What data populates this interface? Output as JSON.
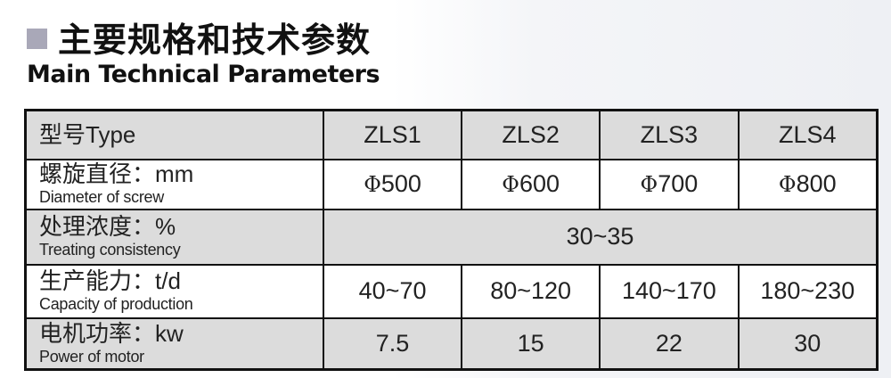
{
  "header": {
    "title_cn": "主要规格和技术参数",
    "title_en": "Main Technical Parameters"
  },
  "table": {
    "type_row": {
      "label_cn": "型号",
      "label_en": "Type",
      "values": [
        "ZLS1",
        "ZLS2",
        "ZLS3",
        "ZLS4"
      ]
    },
    "rows": [
      {
        "label_cn": "螺旋直径：",
        "unit": "mm",
        "label_en": "Diameter of screw",
        "prefix": "Φ",
        "values": [
          "500",
          "600",
          "700",
          "800"
        ]
      },
      {
        "label_cn": "处理浓度：",
        "unit": "%",
        "label_en": "Treating consistency",
        "merged_value": "30~35"
      },
      {
        "label_cn": "生产能力：",
        "unit": "t/d",
        "label_en": "Capacity of production",
        "values": [
          "40~70",
          "80~120",
          "140~170",
          "180~230"
        ]
      },
      {
        "label_cn": "电机功率：",
        "unit": "kw",
        "label_en": "Power of  motor",
        "values": [
          "7.5",
          "15",
          "22",
          "30"
        ]
      }
    ]
  },
  "colors": {
    "gray_row": "#dcdcdc",
    "bullet": "#a9a8b8",
    "border": "#111111"
  }
}
